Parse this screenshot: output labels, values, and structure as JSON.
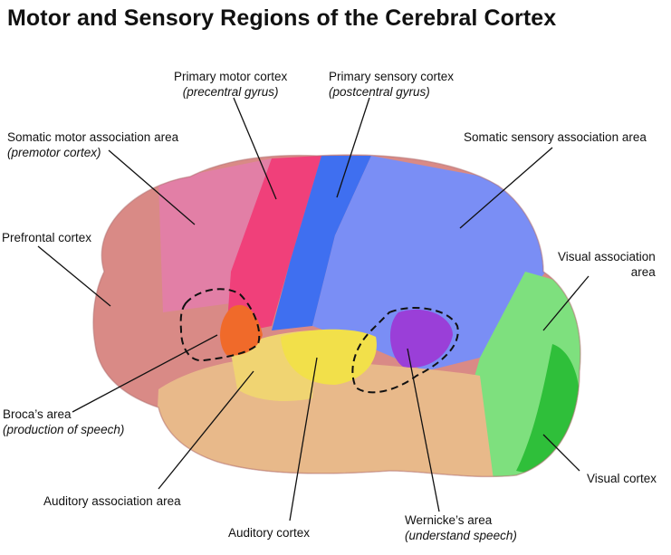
{
  "title": "Motor and Sensory Regions of the Cerebral Cortex",
  "labels": {
    "primary_motor": {
      "name": "Primary motor cortex",
      "sub": "(precentral gyrus)"
    },
    "primary_sensory": {
      "name": "Primary sensory cortex",
      "sub": "(postcentral gyrus)"
    },
    "somatic_motor": {
      "name": "Somatic motor association area",
      "sub": "(premotor cortex)"
    },
    "somatic_sensory": {
      "name": "Somatic sensory association area"
    },
    "prefrontal": {
      "name": "Prefrontal cortex"
    },
    "visual_association": {
      "name": "Visual association",
      "name2": "area"
    },
    "brocas": {
      "name": "Broca’s area",
      "sub": "(production of speech)"
    },
    "auditory_association": {
      "name": "Auditory association area"
    },
    "auditory_cortex": {
      "name": "Auditory cortex"
    },
    "wernickes": {
      "name": "Wernicke’s area",
      "sub": "(understand speech)"
    },
    "visual_cortex": {
      "name": "Visual cortex"
    }
  },
  "colors": {
    "prefrontal": "#d98a86",
    "premotor": "#e27fa6",
    "primary_motor": "#f0407a",
    "primary_sensory": "#3f6ff0",
    "sensory_association": "#7a8ef5",
    "visual_association": "#7ee07e",
    "visual_cortex": "#2fbf3a",
    "temporal": "#e8b98a",
    "auditory": "#f2e04a",
    "auditory_association": "#f0d472",
    "brocas": "#f06a2a",
    "wernickes": "#9a3fd8"
  }
}
